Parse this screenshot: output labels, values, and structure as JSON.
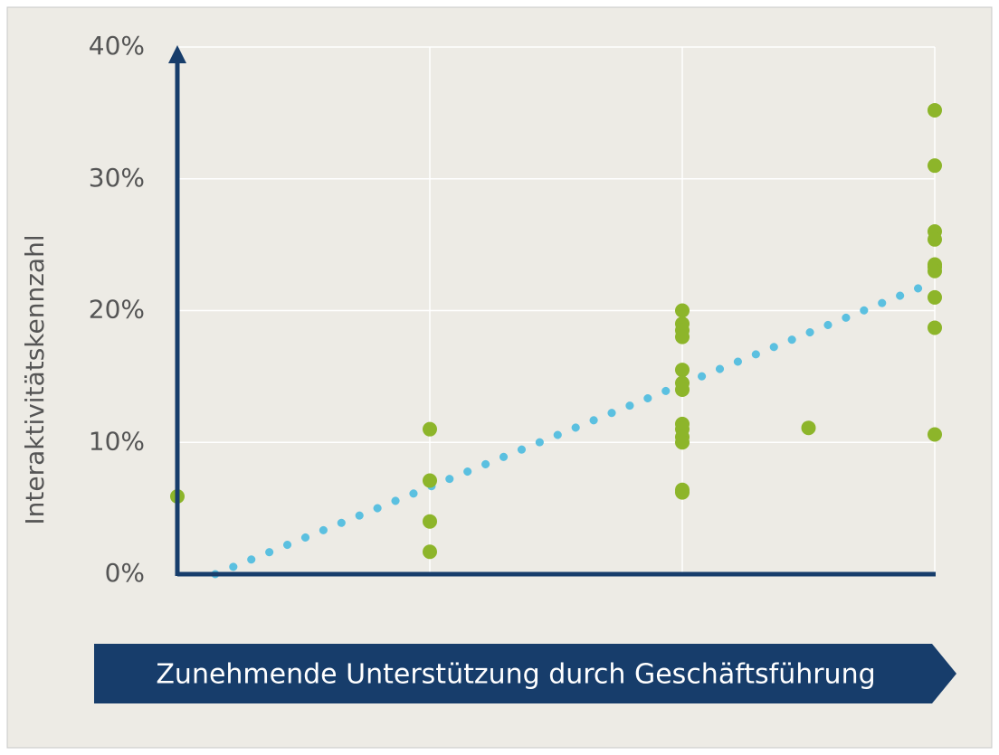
{
  "chart_data": {
    "type": "scatter",
    "x_label": "Zunehmende Unterstützung  durch Geschäftsführung",
    "y_label": "Interaktivitätskennzahl",
    "xlim": [
      0,
      3
    ],
    "xticks": [
      1,
      2,
      3
    ],
    "ylim": [
      0,
      40
    ],
    "yticks": [
      {
        "value": 0,
        "label": "0%"
      },
      {
        "value": 10,
        "label": "10%"
      },
      {
        "value": 20,
        "label": "20%"
      },
      {
        "value": 30,
        "label": "30%"
      },
      {
        "value": 40,
        "label": "40%"
      }
    ],
    "grid": true,
    "series": [
      {
        "color": "#8db52a",
        "x": [
          0,
          1,
          1,
          1,
          1,
          2,
          2,
          2,
          2,
          2,
          2,
          2,
          2,
          2,
          2,
          2,
          2,
          2,
          2.5,
          3,
          3,
          3,
          3,
          3,
          3,
          3,
          3,
          3,
          3
        ],
        "values": [
          5.9,
          11.0,
          7.1,
          4.0,
          1.7,
          20.0,
          19.0,
          18.5,
          18.0,
          15.5,
          14.5,
          14.0,
          11.4,
          11.0,
          10.4,
          10.0,
          6.4,
          6.2,
          11.1,
          35.2,
          31.0,
          26.0,
          25.4,
          23.5,
          23.3,
          23.0,
          21.0,
          18.7,
          10.6
        ]
      }
    ],
    "trendline": {
      "color": "#5bc0e0",
      "x": [
        0.15,
        3
      ],
      "values": [
        0,
        22.2
      ]
    }
  }
}
